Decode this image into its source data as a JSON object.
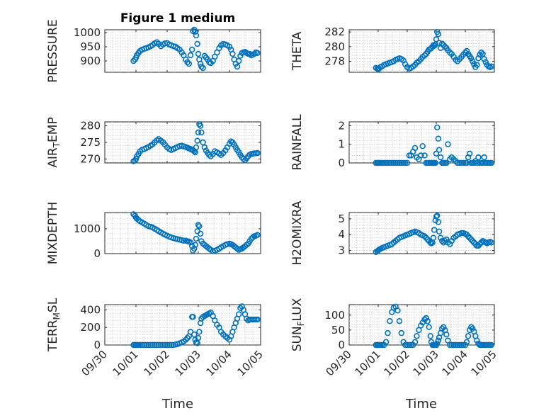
{
  "figure": {
    "title": "Figure 1 medium",
    "xlabel": "Time",
    "x_tick_labels": [
      "09/30",
      "10/01",
      "10/02",
      "10/03",
      "10/04",
      "10/05"
    ],
    "marker_color": "#0072BD",
    "grid": true
  },
  "chart_data": [
    {
      "type": "scatter",
      "ylabel": "PRESSURE",
      "xlim": [
        0,
        5
      ],
      "ylim": [
        860,
        1010
      ],
      "yticks": [
        900,
        950,
        1000
      ],
      "x": [
        0.92,
        0.97,
        1.0,
        1.03,
        1.08,
        1.13,
        1.2,
        1.27,
        1.33,
        1.4,
        1.47,
        1.53,
        1.6,
        1.67,
        1.73,
        1.8,
        1.87,
        1.93,
        2.0,
        2.07,
        2.13,
        2.2,
        2.27,
        2.33,
        2.4,
        2.47,
        2.53,
        2.6,
        2.65,
        2.7,
        2.75,
        2.8,
        2.83,
        2.87,
        2.9,
        2.93,
        2.97,
        3.0,
        3.03,
        3.07,
        3.1,
        3.15,
        3.2,
        3.25,
        3.3,
        3.35,
        3.4,
        3.47,
        3.53,
        3.6,
        3.67,
        3.73,
        3.8,
        3.87,
        3.93,
        4.0,
        4.05,
        4.1,
        4.15,
        4.2,
        4.25,
        4.3,
        4.35,
        4.4,
        4.45,
        4.5,
        4.55,
        4.6,
        4.65,
        4.7,
        4.75,
        4.8,
        4.85,
        4.9
      ],
      "y": [
        900,
        905,
        912,
        920,
        928,
        935,
        940,
        943,
        945,
        948,
        952,
        956,
        962,
        966,
        960,
        952,
        958,
        962,
        963,
        958,
        955,
        952,
        950,
        945,
        940,
        930,
        920,
        905,
        895,
        890,
        920,
        940,
        1005,
        1010,
        1003,
        990,
        960,
        925,
        905,
        890,
        880,
        875,
        918,
        912,
        905,
        895,
        892,
        900,
        915,
        930,
        945,
        955,
        960,
        958,
        955,
        950,
        940,
        925,
        905,
        890,
        880,
        900,
        918,
        928,
        930,
        932,
        928,
        925,
        925,
        920,
        922,
        925,
        930,
        928
      ]
    },
    {
      "type": "scatter",
      "ylabel": "THETA",
      "xlim": [
        0,
        5
      ],
      "ylim": [
        276.5,
        282.3
      ],
      "yticks": [
        278,
        280,
        282
      ],
      "x": [
        0.92,
        0.97,
        1.0,
        1.03,
        1.08,
        1.13,
        1.2,
        1.27,
        1.33,
        1.4,
        1.47,
        1.53,
        1.6,
        1.67,
        1.73,
        1.8,
        1.87,
        1.93,
        2.0,
        2.07,
        2.13,
        2.2,
        2.27,
        2.33,
        2.4,
        2.47,
        2.53,
        2.6,
        2.65,
        2.7,
        2.75,
        2.8,
        2.83,
        2.87,
        2.9,
        2.93,
        2.97,
        3.0,
        3.03,
        3.07,
        3.1,
        3.15,
        3.2,
        3.25,
        3.3,
        3.35,
        3.4,
        3.47,
        3.53,
        3.6,
        3.67,
        3.73,
        3.8,
        3.87,
        3.93,
        4.0,
        4.05,
        4.1,
        4.15,
        4.2,
        4.25,
        4.3,
        4.35,
        4.4,
        4.45,
        4.5,
        4.55,
        4.6,
        4.65,
        4.7,
        4.75,
        4.8,
        4.85,
        4.9
      ],
      "y": [
        277.1,
        277.0,
        276.9,
        277.0,
        277.2,
        277.3,
        277.5,
        277.6,
        277.7,
        277.8,
        277.9,
        278.0,
        278.2,
        278.3,
        278.4,
        278.3,
        278.1,
        277.6,
        277.2,
        277.0,
        277.1,
        277.3,
        277.5,
        277.8,
        278.0,
        278.3,
        278.6,
        278.8,
        279.0,
        279.3,
        279.6,
        279.7,
        279.8,
        280.0,
        280.2,
        280.1,
        280.3,
        281.0,
        282.0,
        281.7,
        280.5,
        279.8,
        280.4,
        280.2,
        280.0,
        279.8,
        279.5,
        279.2,
        279.0,
        278.6,
        278.2,
        278.0,
        278.3,
        278.6,
        278.9,
        279.2,
        279.4,
        279.0,
        278.7,
        278.4,
        278.0,
        277.6,
        277.2,
        277.5,
        278.4,
        278.9,
        279.2,
        279.0,
        278.3,
        277.9,
        277.5,
        277.3,
        277.2,
        277.3
      ]
    },
    {
      "type": "scatter",
      "ylabel": "AIR_TEMP",
      "xlim": [
        0,
        5
      ],
      "ylim": [
        268.8,
        281.2
      ],
      "yticks": [
        270,
        275,
        280
      ],
      "x": [
        0.92,
        0.97,
        1.0,
        1.03,
        1.08,
        1.13,
        1.2,
        1.27,
        1.33,
        1.4,
        1.47,
        1.53,
        1.6,
        1.67,
        1.73,
        1.8,
        1.87,
        1.93,
        2.0,
        2.07,
        2.13,
        2.2,
        2.27,
        2.33,
        2.4,
        2.47,
        2.53,
        2.6,
        2.65,
        2.7,
        2.75,
        2.8,
        2.83,
        2.87,
        2.9,
        2.93,
        2.97,
        3.0,
        3.03,
        3.07,
        3.1,
        3.15,
        3.2,
        3.25,
        3.3,
        3.35,
        3.4,
        3.47,
        3.53,
        3.6,
        3.67,
        3.73,
        3.8,
        3.87,
        3.93,
        4.0,
        4.05,
        4.1,
        4.15,
        4.2,
        4.25,
        4.3,
        4.35,
        4.4,
        4.45,
        4.5,
        4.55,
        4.6,
        4.65,
        4.7,
        4.75,
        4.8,
        4.85,
        4.9
      ],
      "y": [
        269.3,
        269.5,
        270.0,
        270.8,
        271.5,
        272.3,
        272.8,
        273.0,
        273.3,
        273.6,
        274.0,
        274.4,
        275.0,
        275.6,
        276.0,
        275.5,
        275.0,
        274.3,
        273.5,
        273.0,
        272.7,
        273.0,
        273.3,
        273.6,
        273.9,
        274.0,
        273.8,
        273.6,
        273.4,
        273.2,
        273.0,
        272.8,
        272.6,
        272.3,
        272.0,
        273.5,
        275.5,
        278.0,
        280.5,
        280.0,
        278.0,
        275.0,
        273.5,
        272.5,
        271.8,
        271.2,
        270.8,
        271.5,
        272.3,
        272.0,
        271.6,
        271.2,
        271.8,
        272.6,
        273.5,
        274.6,
        275.3,
        275.0,
        274.3,
        273.5,
        272.7,
        272.0,
        271.2,
        270.5,
        270.0,
        269.6,
        270.2,
        270.8,
        271.3,
        271.5,
        271.6,
        271.7,
        271.7,
        271.8
      ]
    },
    {
      "type": "scatter",
      "ylabel": "RAINFALL",
      "xlim": [
        0,
        5
      ],
      "ylim": [
        0,
        2.2
      ],
      "yticks": [
        0,
        1,
        2
      ],
      "x": [
        0.92,
        0.97,
        1.0,
        1.03,
        1.08,
        1.13,
        1.2,
        1.27,
        1.33,
        1.4,
        1.47,
        1.53,
        1.6,
        1.67,
        1.73,
        1.8,
        1.87,
        1.93,
        2.0,
        2.07,
        2.13,
        2.2,
        2.27,
        2.33,
        2.4,
        2.47,
        2.53,
        2.6,
        2.65,
        2.7,
        2.75,
        2.8,
        2.83,
        2.87,
        2.9,
        2.93,
        2.97,
        3.0,
        3.03,
        3.07,
        3.1,
        3.15,
        3.2,
        3.25,
        3.3,
        3.35,
        3.4,
        3.47,
        3.53,
        3.6,
        3.67,
        3.73,
        3.8,
        3.87,
        3.93,
        4.0,
        4.05,
        4.1,
        4.15,
        4.2,
        4.25,
        4.3,
        4.35,
        4.4,
        4.45,
        4.5,
        4.55,
        4.6,
        4.65,
        4.7,
        4.75,
        4.8,
        4.85,
        4.9
      ],
      "y": [
        0,
        0,
        0,
        0,
        0,
        0,
        0,
        0,
        0,
        0,
        0,
        0,
        0,
        0,
        0,
        0,
        0,
        0,
        0,
        0.4,
        0.4,
        0.6,
        0.8,
        0.3,
        0.2,
        0.4,
        0.9,
        0.4,
        0,
        0,
        0,
        0,
        0,
        0,
        0,
        0,
        0,
        0.5,
        1.9,
        1.3,
        0.7,
        0.3,
        0,
        0,
        0,
        0,
        1.0,
        0.2,
        0.3,
        0.2,
        0.1,
        0,
        0,
        0,
        0,
        0,
        0,
        0.3,
        0.5,
        0,
        0,
        0,
        0.1,
        0,
        0.3,
        0,
        0,
        0,
        0.3,
        0,
        0,
        0,
        0,
        0
      ]
    },
    {
      "type": "scatter",
      "ylabel": "MIXDEPTH",
      "xlim": [
        0,
        5
      ],
      "ylim": [
        0,
        1650
      ],
      "yticks": [
        0,
        1000
      ],
      "x": [
        0.92,
        0.97,
        1.0,
        1.03,
        1.08,
        1.13,
        1.2,
        1.27,
        1.33,
        1.4,
        1.47,
        1.53,
        1.6,
        1.67,
        1.73,
        1.8,
        1.87,
        1.93,
        2.0,
        2.07,
        2.13,
        2.2,
        2.27,
        2.33,
        2.4,
        2.47,
        2.53,
        2.6,
        2.65,
        2.7,
        2.75,
        2.8,
        2.83,
        2.87,
        2.9,
        2.93,
        2.97,
        3.0,
        3.03,
        3.07,
        3.1,
        3.15,
        3.2,
        3.25,
        3.3,
        3.35,
        3.4,
        3.47,
        3.53,
        3.6,
        3.67,
        3.73,
        3.8,
        3.87,
        3.93,
        4.0,
        4.05,
        4.1,
        4.15,
        4.2,
        4.25,
        4.3,
        4.35,
        4.4,
        4.45,
        4.5,
        4.55,
        4.6,
        4.65,
        4.7,
        4.75,
        4.8,
        4.85,
        4.9
      ],
      "y": [
        1580,
        1520,
        1450,
        1400,
        1350,
        1300,
        1250,
        1200,
        1150,
        1100,
        1080,
        1050,
        1000,
        950,
        900,
        850,
        800,
        760,
        720,
        680,
        650,
        620,
        600,
        580,
        560,
        540,
        520,
        520,
        500,
        480,
        450,
        300,
        120,
        200,
        350,
        600,
        900,
        1150,
        1100,
        800,
        500,
        400,
        350,
        300,
        250,
        200,
        150,
        100,
        120,
        150,
        200,
        250,
        300,
        350,
        380,
        400,
        380,
        350,
        300,
        250,
        200,
        150,
        180,
        200,
        250,
        300,
        350,
        400,
        500,
        600,
        650,
        700,
        720,
        750
      ]
    },
    {
      "type": "scatter",
      "ylabel": "H2OMIXRA",
      "xlim": [
        0,
        5
      ],
      "ylim": [
        2.8,
        5.4
      ],
      "yticks": [
        3,
        4,
        5
      ],
      "x": [
        0.92,
        0.97,
        1.0,
        1.03,
        1.08,
        1.13,
        1.2,
        1.27,
        1.33,
        1.4,
        1.47,
        1.53,
        1.6,
        1.67,
        1.73,
        1.8,
        1.87,
        1.93,
        2.0,
        2.07,
        2.13,
        2.2,
        2.27,
        2.33,
        2.4,
        2.47,
        2.53,
        2.6,
        2.65,
        2.7,
        2.75,
        2.8,
        2.83,
        2.87,
        2.9,
        2.93,
        2.97,
        3.0,
        3.03,
        3.07,
        3.1,
        3.15,
        3.2,
        3.25,
        3.3,
        3.35,
        3.4,
        3.47,
        3.53,
        3.6,
        3.67,
        3.73,
        3.8,
        3.87,
        3.93,
        4.0,
        4.05,
        4.1,
        4.15,
        4.2,
        4.25,
        4.3,
        4.35,
        4.4,
        4.45,
        4.5,
        4.55,
        4.6,
        4.65,
        4.7,
        4.75,
        4.8,
        4.85,
        4.9
      ],
      "y": [
        2.9,
        2.95,
        3.0,
        3.05,
        3.1,
        3.15,
        3.2,
        3.25,
        3.3,
        3.35,
        3.4,
        3.5,
        3.6,
        3.7,
        3.8,
        3.85,
        3.9,
        3.95,
        4.0,
        4.05,
        4.1,
        4.15,
        4.2,
        4.15,
        4.1,
        4.0,
        3.95,
        3.9,
        3.8,
        3.7,
        3.6,
        3.5,
        3.45,
        3.5,
        3.8,
        4.3,
        4.9,
        5.15,
        5.2,
        4.8,
        4.2,
        3.8,
        3.6,
        3.5,
        3.6,
        3.7,
        3.5,
        3.4,
        3.6,
        3.8,
        3.9,
        4.0,
        4.05,
        4.1,
        4.1,
        4.05,
        4.0,
        3.9,
        3.8,
        3.7,
        3.6,
        3.5,
        3.4,
        3.3,
        3.3,
        3.4,
        3.5,
        3.6,
        3.55,
        3.5,
        3.45,
        3.5,
        3.55,
        3.5
      ]
    },
    {
      "type": "scatter",
      "ylabel": "TERR_MSL",
      "xlim": [
        0,
        5
      ],
      "ylim": [
        0,
        460
      ],
      "yticks": [
        0,
        200,
        400
      ],
      "x": [
        0.92,
        0.97,
        1.0,
        1.03,
        1.08,
        1.13,
        1.2,
        1.27,
        1.33,
        1.4,
        1.47,
        1.53,
        1.6,
        1.67,
        1.73,
        1.8,
        1.87,
        1.93,
        2.0,
        2.07,
        2.13,
        2.2,
        2.27,
        2.33,
        2.4,
        2.47,
        2.53,
        2.6,
        2.65,
        2.7,
        2.75,
        2.8,
        2.83,
        2.87,
        2.9,
        2.93,
        2.97,
        3.0,
        3.03,
        3.07,
        3.1,
        3.15,
        3.2,
        3.25,
        3.3,
        3.35,
        3.4,
        3.47,
        3.53,
        3.6,
        3.67,
        3.73,
        3.8,
        3.87,
        3.93,
        4.0,
        4.05,
        4.1,
        4.15,
        4.2,
        4.25,
        4.3,
        4.35,
        4.4,
        4.45,
        4.5,
        4.55,
        4.6,
        4.65,
        4.7,
        4.75,
        4.8,
        4.85,
        4.9
      ],
      "y": [
        0,
        0,
        0,
        0,
        0,
        0,
        0,
        0,
        0,
        0,
        0,
        0,
        0,
        0,
        0,
        0,
        0,
        0,
        0,
        0,
        0,
        0,
        5,
        10,
        20,
        30,
        40,
        60,
        80,
        100,
        150,
        320,
        320,
        120,
        60,
        30,
        20,
        80,
        150,
        250,
        300,
        320,
        330,
        340,
        350,
        360,
        370,
        330,
        280,
        230,
        200,
        150,
        120,
        100,
        80,
        60,
        100,
        150,
        200,
        250,
        300,
        350,
        420,
        440,
        400,
        350,
        300,
        280,
        290,
        290,
        290,
        290,
        290,
        290
      ]
    },
    {
      "type": "scatter",
      "ylabel": "SUN_FLUX",
      "xlim": [
        0,
        5
      ],
      "ylim": [
        0,
        135
      ],
      "yticks": [
        0,
        50,
        100
      ],
      "x": [
        0.92,
        0.97,
        1.0,
        1.03,
        1.08,
        1.13,
        1.2,
        1.27,
        1.33,
        1.4,
        1.47,
        1.53,
        1.6,
        1.67,
        1.73,
        1.8,
        1.87,
        1.93,
        2.0,
        2.07,
        2.13,
        2.2,
        2.27,
        2.33,
        2.4,
        2.47,
        2.53,
        2.6,
        2.65,
        2.7,
        2.75,
        2.8,
        2.83,
        2.87,
        2.9,
        2.93,
        2.97,
        3.0,
        3.03,
        3.07,
        3.1,
        3.15,
        3.2,
        3.25,
        3.3,
        3.35,
        3.4,
        3.47,
        3.53,
        3.6,
        3.67,
        3.73,
        3.8,
        3.87,
        3.93,
        4.0,
        4.05,
        4.1,
        4.15,
        4.2,
        4.25,
        4.3,
        4.35,
        4.4,
        4.45,
        4.5,
        4.55,
        4.6,
        4.65,
        4.7,
        4.75,
        4.8,
        4.85,
        4.9
      ],
      "y": [
        0,
        0,
        0,
        0,
        0,
        0,
        0,
        10,
        40,
        80,
        110,
        125,
        128,
        115,
        80,
        40,
        10,
        0,
        0,
        0,
        0,
        0,
        10,
        30,
        50,
        65,
        75,
        85,
        90,
        80,
        60,
        30,
        10,
        0,
        0,
        0,
        0,
        0,
        5,
        15,
        25,
        40,
        55,
        60,
        50,
        35,
        15,
        0,
        0,
        0,
        0,
        0,
        0,
        0,
        0,
        0,
        10,
        30,
        50,
        60,
        55,
        45,
        30,
        15,
        5,
        0,
        0,
        0,
        0,
        0,
        0,
        0,
        0,
        0
      ]
    }
  ]
}
